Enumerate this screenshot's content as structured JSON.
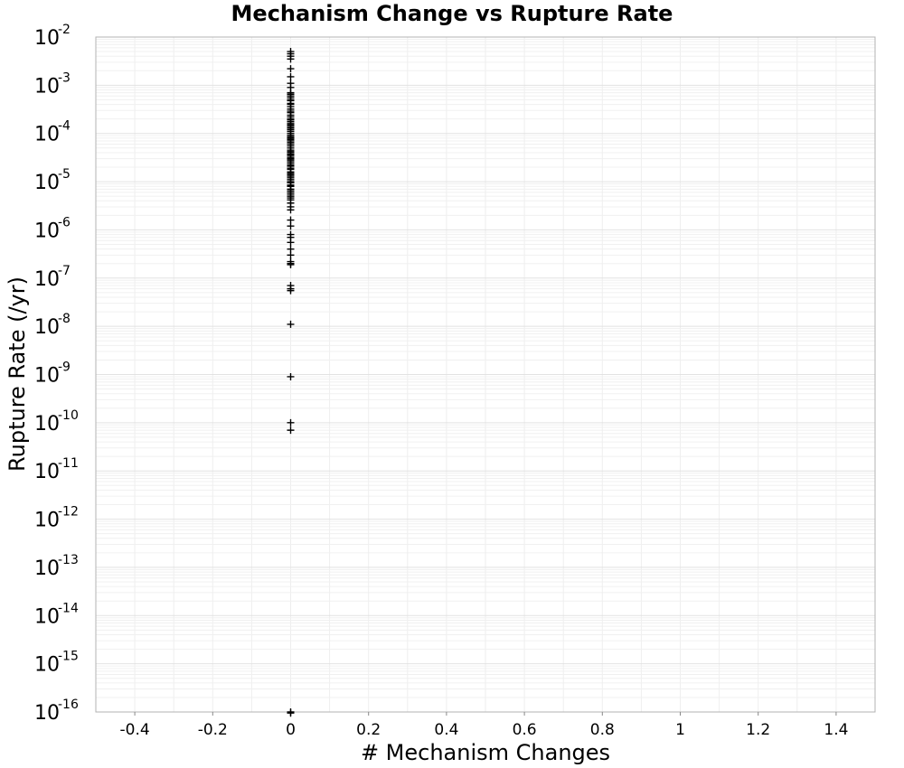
{
  "chart_data": {
    "type": "scatter",
    "title": "Mechanism Change vs Rupture Rate",
    "xlabel": "# Mechanism Changes",
    "ylabel": "Rupture Rate (/yr)",
    "xlim": [
      -0.5,
      1.5
    ],
    "ylim": [
      1e-16,
      0.01
    ],
    "yscale": "log",
    "grid": true,
    "marker": "+",
    "marker_color": "#000000",
    "x_ticks": [
      "-0.4",
      "-0.2",
      "0",
      "0.2",
      "0.4",
      "0.6",
      "0.8",
      "1",
      "1.2",
      "1.4"
    ],
    "x_tick_values": [
      -0.4,
      -0.2,
      0,
      0.2,
      0.4,
      0.6,
      0.8,
      1,
      1.2,
      1.4
    ],
    "y_ticks": [
      {
        "base": "10",
        "exp": "-2"
      },
      {
        "base": "10",
        "exp": "-3"
      },
      {
        "base": "10",
        "exp": "-4"
      },
      {
        "base": "10",
        "exp": "-5"
      },
      {
        "base": "10",
        "exp": "-6"
      },
      {
        "base": "10",
        "exp": "-7"
      },
      {
        "base": "10",
        "exp": "-8"
      },
      {
        "base": "10",
        "exp": "-9"
      },
      {
        "base": "10",
        "exp": "-10"
      },
      {
        "base": "10",
        "exp": "-11"
      },
      {
        "base": "10",
        "exp": "-12"
      },
      {
        "base": "10",
        "exp": "-13"
      },
      {
        "base": "10",
        "exp": "-14"
      },
      {
        "base": "10",
        "exp": "-15"
      },
      {
        "base": "10",
        "exp": "-16"
      }
    ],
    "series": [
      {
        "x": [
          0,
          0,
          0,
          0,
          0,
          0,
          0,
          0,
          0,
          0,
          0,
          0,
          0,
          0,
          0,
          0,
          0,
          0,
          0,
          0,
          0,
          0,
          0,
          0,
          0,
          0,
          0,
          0,
          0,
          0,
          0,
          0,
          0,
          0,
          0,
          0,
          0,
          0,
          0,
          0,
          0,
          0,
          0,
          0,
          0,
          0,
          0,
          0,
          0,
          0,
          0,
          0,
          0,
          0,
          0,
          0,
          0,
          0,
          0,
          0,
          0,
          0,
          0,
          0,
          0,
          0,
          0,
          0,
          0,
          0,
          0,
          0,
          0,
          0,
          0,
          0,
          0,
          0,
          0,
          0,
          0,
          0,
          0,
          0,
          0,
          0,
          0,
          0,
          0,
          0,
          0,
          0,
          0,
          0
        ],
        "y": [
          0.005,
          0.0045,
          0.004,
          0.0035,
          0.0022,
          0.0015,
          0.0011,
          0.0009,
          0.0007,
          0.0006,
          0.0005,
          0.0004,
          0.00032,
          0.00027,
          0.00022,
          0.00019,
          0.00016,
          0.00014,
          0.00012,
          0.0001,
          8.5e-05,
          7.5e-05,
          6.5e-05,
          5.5e-05,
          4.5e-05,
          4e-05,
          3.5e-05,
          3e-05,
          2.6e-05,
          2.2e-05,
          1.9e-05,
          1.6e-05,
          1.4e-05,
          1.2e-05,
          1e-05,
          8.5e-06,
          7e-06,
          6e-06,
          5e-06,
          4.2e-06,
          3.6e-06,
          3e-06,
          2.6e-06,
          1.6e-06,
          1.2e-06,
          8e-07,
          7e-07,
          5.5e-07,
          4e-07,
          3e-07,
          2.2e-07,
          2e-07,
          1.9e-07,
          7e-08,
          6e-08,
          5.5e-08,
          1.1e-08,
          9e-10,
          1e-10,
          7e-11,
          1e-16,
          9.5e-17,
          0.00065,
          0.00055,
          0.00048,
          0.00042,
          0.00036,
          0.00029,
          0.00024,
          0.0002,
          0.000175,
          0.00015,
          0.00013,
          0.00011,
          9.2e-05,
          8e-05,
          7e-05,
          6e-05,
          5e-05,
          4.2e-05,
          3.7e-05,
          3.2e-05,
          2.8e-05,
          2.4e-05,
          2.1e-05,
          1.8e-05,
          1.5e-05,
          1.3e-05,
          1.1e-05,
          9.5e-06,
          8e-06,
          6.5e-06,
          5.5e-06,
          4.6e-06
        ]
      }
    ]
  }
}
